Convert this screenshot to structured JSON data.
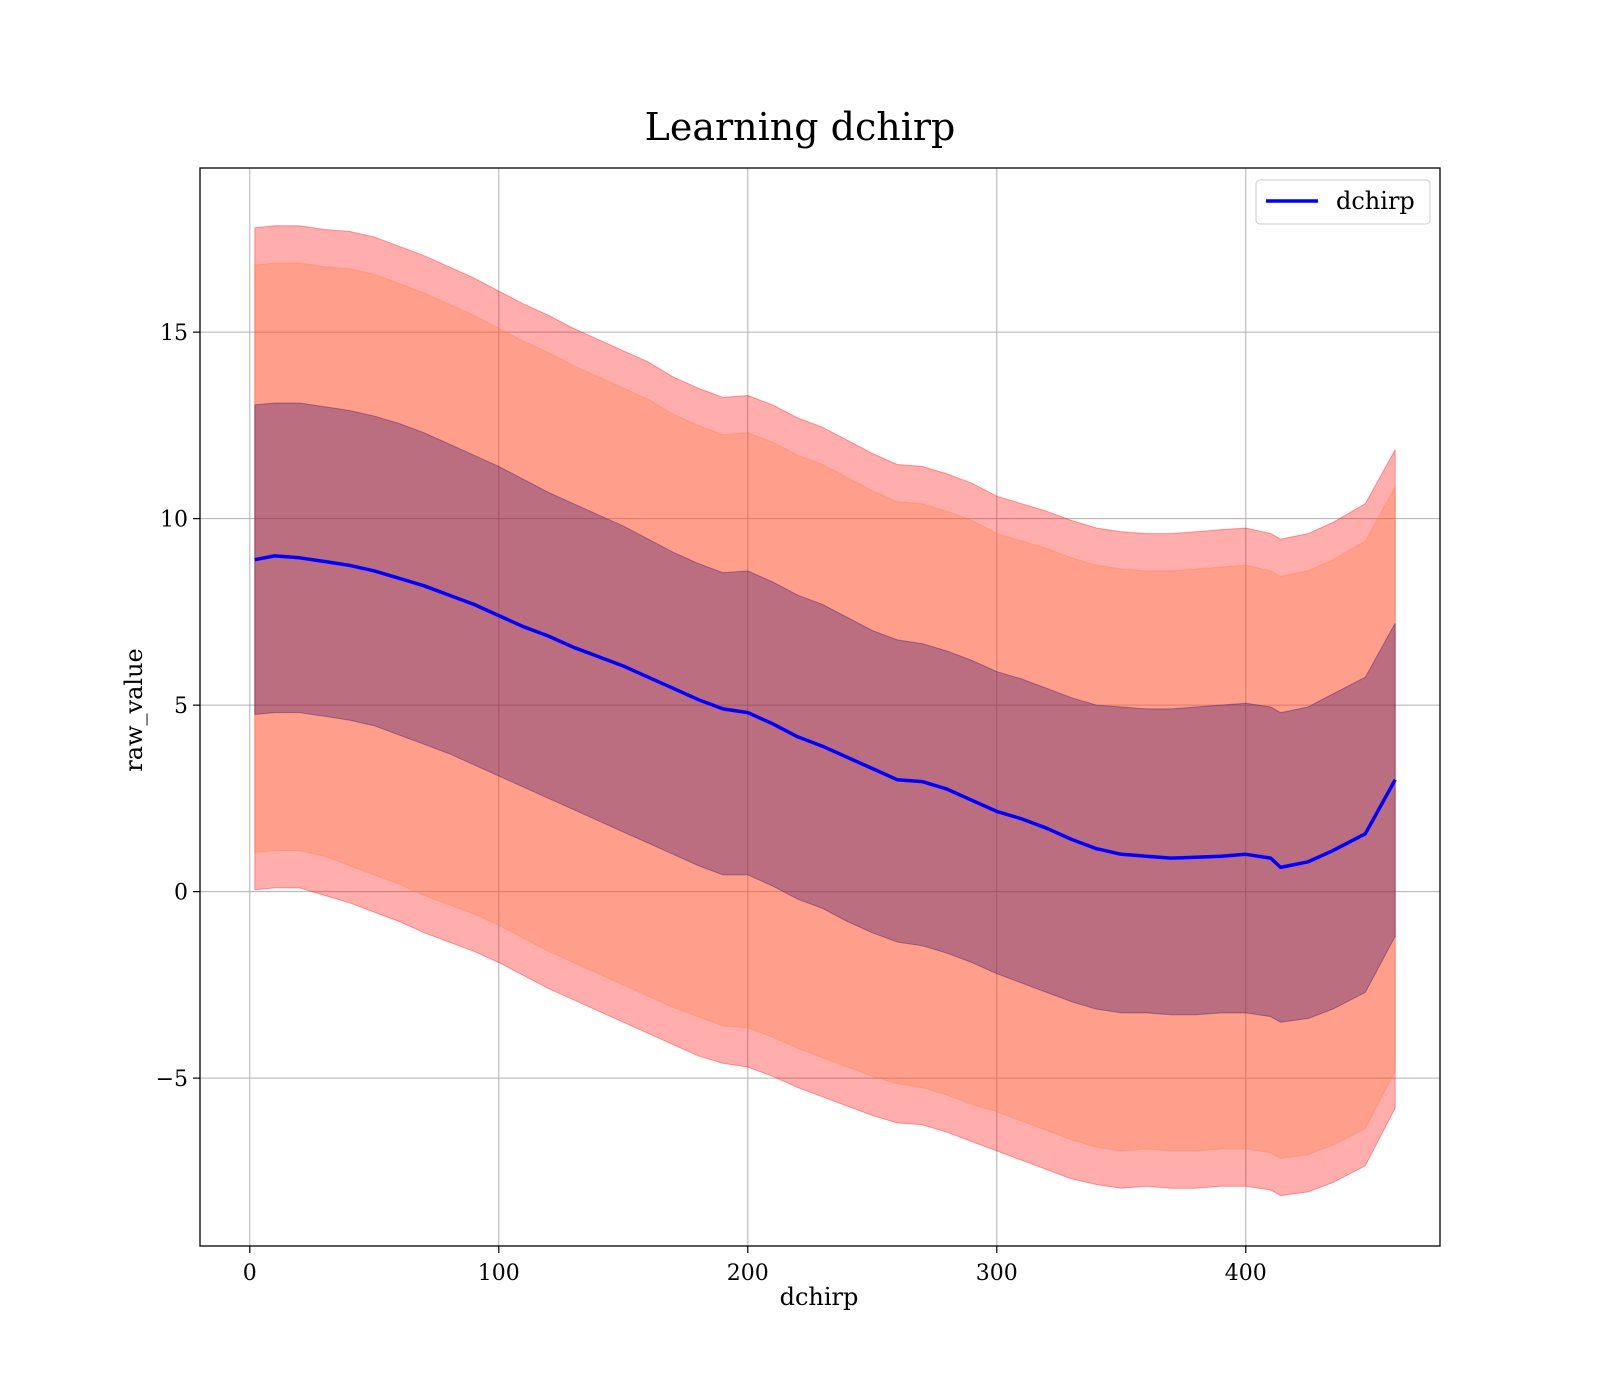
{
  "chart_data": {
    "type": "line",
    "title": "Learning dchirp",
    "xlabel": "dchirp",
    "ylabel": "raw_value",
    "xlim": [
      -20,
      478
    ],
    "ylim": [
      -9.5,
      19.4
    ],
    "xticks": [
      0,
      100,
      200,
      300,
      400
    ],
    "xtick_labels": [
      "0",
      "100",
      "200",
      "300",
      "400"
    ],
    "yticks": [
      -5,
      0,
      5,
      10,
      15
    ],
    "ytick_labels": [
      "−5",
      "0",
      "5",
      "10",
      "15"
    ],
    "grid": true,
    "legend_position": "top-right",
    "x": [
      2,
      10,
      20,
      30,
      40,
      50,
      60,
      70,
      80,
      90,
      100,
      110,
      120,
      130,
      140,
      150,
      160,
      170,
      180,
      190,
      200,
      210,
      220,
      230,
      240,
      250,
      260,
      270,
      280,
      290,
      300,
      310,
      320,
      330,
      340,
      350,
      360,
      370,
      380,
      390,
      400,
      410,
      414,
      425,
      435,
      448,
      460
    ],
    "series": [
      {
        "name": "dchirp",
        "color": "#0000ff",
        "values": [
          8.9,
          9.0,
          8.95,
          8.85,
          8.75,
          8.6,
          8.4,
          8.2,
          7.95,
          7.7,
          7.4,
          7.1,
          6.85,
          6.55,
          6.3,
          6.05,
          5.75,
          5.45,
          5.15,
          4.9,
          4.8,
          4.5,
          4.15,
          3.9,
          3.6,
          3.3,
          3.0,
          2.95,
          2.75,
          2.45,
          2.15,
          1.95,
          1.7,
          1.4,
          1.15,
          1.0,
          0.95,
          0.9,
          0.92,
          0.95,
          1.0,
          0.9,
          0.65,
          0.8,
          1.1,
          1.55,
          3.0
        ]
      }
    ],
    "bands": [
      {
        "color": "#ff0000",
        "opacity": 0.32,
        "lower": [
          0.05,
          0.1,
          0.1,
          -0.1,
          -0.3,
          -0.55,
          -0.8,
          -1.1,
          -1.35,
          -1.6,
          -1.9,
          -2.25,
          -2.6,
          -2.9,
          -3.2,
          -3.5,
          -3.8,
          -4.1,
          -4.4,
          -4.6,
          -4.7,
          -4.95,
          -5.25,
          -5.5,
          -5.75,
          -6.0,
          -6.2,
          -6.25,
          -6.45,
          -6.7,
          -6.95,
          -7.2,
          -7.45,
          -7.7,
          -7.85,
          -7.95,
          -7.9,
          -7.95,
          -7.95,
          -7.9,
          -7.9,
          -8.0,
          -8.15,
          -8.05,
          -7.8,
          -7.35,
          -5.8
        ],
        "upper": [
          17.8,
          17.85,
          17.85,
          17.75,
          17.7,
          17.55,
          17.3,
          17.05,
          16.75,
          16.45,
          16.1,
          15.75,
          15.45,
          15.1,
          14.8,
          14.5,
          14.2,
          13.8,
          13.5,
          13.25,
          13.3,
          13.05,
          12.7,
          12.45,
          12.1,
          11.75,
          11.45,
          11.4,
          11.2,
          10.95,
          10.6,
          10.4,
          10.2,
          9.95,
          9.75,
          9.65,
          9.6,
          9.6,
          9.65,
          9.7,
          9.75,
          9.6,
          9.45,
          9.6,
          9.9,
          10.4,
          11.85
        ]
      },
      {
        "color": "#ff8040",
        "opacity": 0.32,
        "lower": [
          1.05,
          1.1,
          1.1,
          0.95,
          0.7,
          0.45,
          0.2,
          -0.1,
          -0.35,
          -0.6,
          -0.9,
          -1.25,
          -1.6,
          -1.9,
          -2.2,
          -2.5,
          -2.8,
          -3.1,
          -3.35,
          -3.6,
          -3.65,
          -3.9,
          -4.2,
          -4.45,
          -4.7,
          -4.95,
          -5.15,
          -5.25,
          -5.45,
          -5.7,
          -5.9,
          -6.15,
          -6.4,
          -6.65,
          -6.85,
          -6.95,
          -6.9,
          -6.95,
          -6.95,
          -6.9,
          -6.9,
          -7.0,
          -7.15,
          -7.05,
          -6.8,
          -6.35,
          -4.8
        ],
        "upper": [
          16.8,
          16.85,
          16.85,
          16.75,
          16.7,
          16.55,
          16.3,
          16.05,
          15.75,
          15.45,
          15.1,
          14.75,
          14.45,
          14.1,
          13.8,
          13.5,
          13.2,
          12.8,
          12.5,
          12.25,
          12.3,
          12.05,
          11.7,
          11.45,
          11.1,
          10.75,
          10.45,
          10.4,
          10.2,
          9.95,
          9.6,
          9.4,
          9.2,
          8.95,
          8.75,
          8.65,
          8.6,
          8.6,
          8.65,
          8.7,
          8.75,
          8.6,
          8.45,
          8.6,
          8.9,
          9.4,
          10.85
        ]
      },
      {
        "color": "#2a0a6a",
        "opacity": 0.32,
        "lower": [
          4.75,
          4.8,
          4.8,
          4.7,
          4.6,
          4.45,
          4.2,
          3.95,
          3.7,
          3.4,
          3.1,
          2.8,
          2.5,
          2.2,
          1.9,
          1.6,
          1.3,
          1.0,
          0.7,
          0.45,
          0.45,
          0.15,
          -0.2,
          -0.45,
          -0.8,
          -1.1,
          -1.35,
          -1.45,
          -1.65,
          -1.9,
          -2.2,
          -2.45,
          -2.7,
          -2.95,
          -3.15,
          -3.25,
          -3.25,
          -3.3,
          -3.3,
          -3.25,
          -3.25,
          -3.35,
          -3.5,
          -3.4,
          -3.15,
          -2.7,
          -1.2
        ],
        "upper": [
          13.05,
          13.1,
          13.1,
          13.0,
          12.9,
          12.75,
          12.55,
          12.3,
          12.0,
          11.7,
          11.4,
          11.05,
          10.7,
          10.4,
          10.1,
          9.8,
          9.45,
          9.1,
          8.8,
          8.55,
          8.6,
          8.3,
          7.95,
          7.7,
          7.35,
          7.0,
          6.75,
          6.65,
          6.45,
          6.2,
          5.9,
          5.7,
          5.45,
          5.2,
          5.0,
          4.95,
          4.9,
          4.9,
          4.95,
          5.0,
          5.05,
          4.95,
          4.8,
          4.95,
          5.3,
          5.75,
          7.2
        ]
      }
    ]
  }
}
